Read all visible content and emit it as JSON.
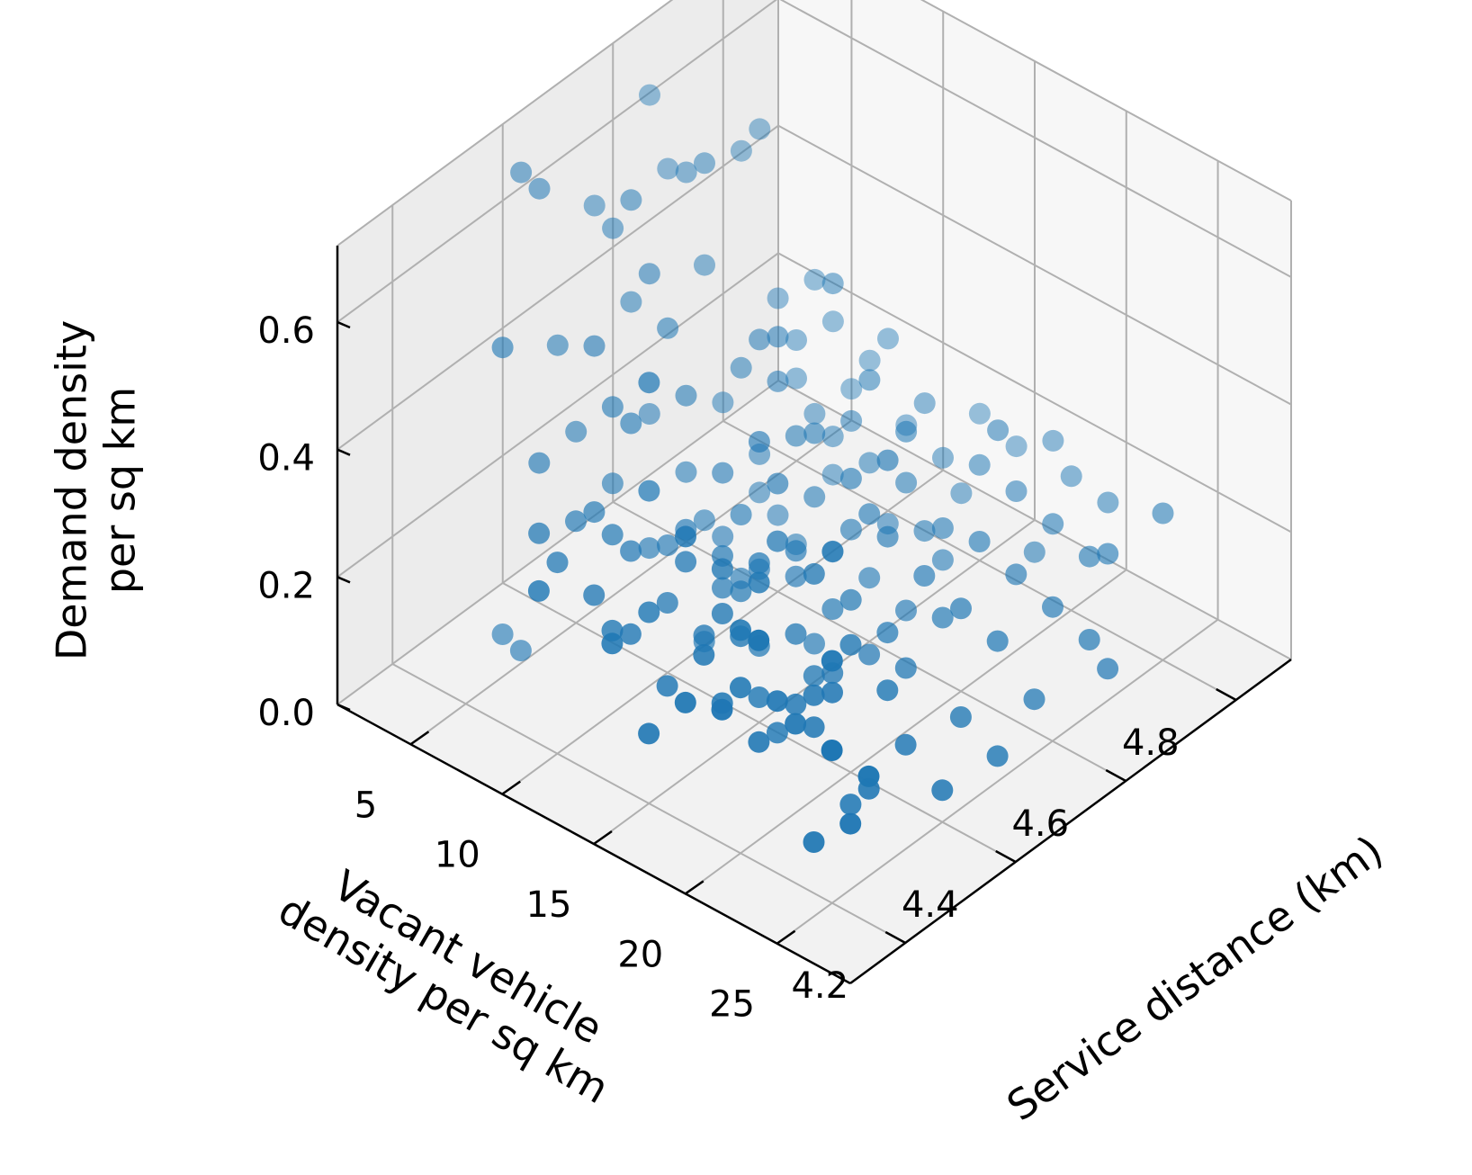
{
  "chart_data": {
    "type": "scatter",
    "projection": "3d",
    "title": "",
    "marker_color": "#1f77b4",
    "pane_color": "#f2f2f2",
    "grid": true,
    "axes": {
      "x": {
        "label_lines": [
          "Service distance (km)"
        ],
        "range": [
          4.1,
          4.9
        ],
        "ticks": [
          4.2,
          4.4,
          4.6,
          4.8
        ],
        "tick_labels": [
          "4.2",
          "4.4",
          "4.6",
          "4.8"
        ]
      },
      "y": {
        "label_lines": [
          "Vacant vehicle",
          "density per sq km"
        ],
        "range": [
          1,
          29
        ],
        "ticks": [
          5,
          10,
          15,
          20,
          25
        ],
        "tick_labels": [
          "5",
          "10",
          "15",
          "20",
          "25"
        ]
      },
      "z": {
        "label_lines": [
          "Demand density",
          "per sq km"
        ],
        "range": [
          0,
          0.72
        ],
        "ticks": [
          0.0,
          0.2,
          0.4,
          0.6
        ],
        "tick_labels": [
          "0.0",
          "0.2",
          "0.4",
          "0.6"
        ]
      }
    },
    "points": [
      [
        4.3,
        5,
        0.02
      ],
      [
        4.3,
        4,
        0.03
      ],
      [
        4.4,
        13,
        0.18
      ],
      [
        4.5,
        14,
        0.19
      ],
      [
        4.5,
        16,
        0.22
      ],
      [
        4.6,
        14,
        0.24
      ],
      [
        4.8,
        16,
        0.22
      ],
      [
        4.9,
        22,
        0.12
      ],
      [
        4.7,
        16,
        0.13
      ],
      [
        4.5,
        10,
        0.25
      ],
      [
        4.6,
        10,
        0.33
      ],
      [
        4.7,
        12,
        0.3
      ],
      [
        4.7,
        14,
        0.25
      ],
      [
        4.6,
        11,
        0.26
      ],
      [
        4.6,
        12,
        0.28
      ],
      [
        4.6,
        16,
        0.3
      ],
      [
        4.5,
        12,
        0.33
      ],
      [
        4.4,
        8,
        0.36
      ],
      [
        4.4,
        7,
        0.37
      ],
      [
        4.5,
        8,
        0.34
      ],
      [
        4.6,
        9,
        0.38
      ],
      [
        4.6,
        10,
        0.4
      ],
      [
        4.7,
        10,
        0.42
      ],
      [
        4.5,
        4,
        0.54
      ],
      [
        4.5,
        3,
        0.56
      ],
      [
        4.6,
        4,
        0.57
      ],
      [
        4.7,
        5,
        0.55
      ],
      [
        4.5,
        5,
        0.6
      ],
      [
        4.6,
        6,
        0.61
      ],
      [
        4.7,
        6,
        0.6
      ],
      [
        4.4,
        2,
        0.66
      ],
      [
        4.4,
        3,
        0.65
      ],
      [
        4.6,
        3,
        0.67
      ],
      [
        4.6,
        5,
        0.58
      ],
      [
        4.5,
        6,
        0.5
      ],
      [
        4.3,
        4,
        0.48
      ],
      [
        4.5,
        7,
        0.43
      ],
      [
        4.4,
        6,
        0.45
      ],
      [
        4.3,
        12,
        0.55
      ],
      [
        4.2,
        17,
        0.45
      ],
      [
        4.1,
        24,
        0.46
      ],
      [
        4.2,
        25,
        0.38
      ],
      [
        4.1,
        28,
        0.35
      ],
      [
        4.2,
        20,
        0.35
      ],
      [
        4.3,
        18,
        0.33
      ],
      [
        4.3,
        16,
        0.32
      ],
      [
        4.4,
        16,
        0.3
      ],
      [
        4.4,
        18,
        0.28
      ],
      [
        4.3,
        14,
        0.3
      ],
      [
        4.2,
        14,
        0.25
      ],
      [
        4.3,
        11,
        0.27
      ],
      [
        4.4,
        11,
        0.24
      ],
      [
        4.4,
        13,
        0.23
      ],
      [
        4.2,
        22,
        0.27
      ],
      [
        4.2,
        23,
        0.25
      ],
      [
        4.3,
        22,
        0.22
      ],
      [
        4.3,
        21,
        0.2
      ],
      [
        4.4,
        22,
        0.16
      ],
      [
        4.2,
        27,
        0.23
      ],
      [
        4.3,
        20,
        0.17
      ],
      [
        4.3,
        18,
        0.15
      ],
      [
        4.5,
        20,
        0.1
      ],
      [
        4.4,
        15,
        0.12
      ],
      [
        4.4,
        18,
        0.12
      ],
      [
        4.5,
        14,
        0.15
      ],
      [
        4.5,
        12,
        0.13
      ],
      [
        4.6,
        13,
        0.11
      ],
      [
        4.6,
        15,
        0.1
      ],
      [
        4.7,
        15,
        0.11
      ],
      [
        4.8,
        11,
        0.15
      ],
      [
        4.8,
        13,
        0.13
      ],
      [
        4.7,
        10,
        0.12
      ],
      [
        4.6,
        9,
        0.14
      ],
      [
        4.5,
        9,
        0.16
      ],
      [
        4.4,
        9,
        0.18
      ],
      [
        4.4,
        10,
        0.2
      ],
      [
        4.5,
        11,
        0.2
      ],
      [
        4.6,
        12,
        0.18
      ],
      [
        4.7,
        12,
        0.17
      ],
      [
        4.7,
        9,
        0.2
      ],
      [
        4.8,
        9,
        0.22
      ],
      [
        4.8,
        7,
        0.25
      ],
      [
        4.7,
        8,
        0.24
      ],
      [
        4.6,
        7,
        0.25
      ],
      [
        4.5,
        6,
        0.28
      ],
      [
        4.4,
        5,
        0.3
      ],
      [
        4.3,
        6,
        0.33
      ],
      [
        4.3,
        9,
        0.3
      ],
      [
        4.3,
        10,
        0.28
      ],
      [
        4.2,
        10,
        0.3
      ],
      [
        4.2,
        12,
        0.28
      ],
      [
        4.2,
        9,
        0.33
      ],
      [
        4.1,
        12,
        0.35
      ],
      [
        4.1,
        16,
        0.33
      ],
      [
        4.2,
        15,
        0.3
      ],
      [
        4.2,
        18,
        0.28
      ],
      [
        4.1,
        20,
        0.3
      ],
      [
        4.1,
        22,
        0.32
      ],
      [
        4.2,
        20,
        0.26
      ],
      [
        4.2,
        13,
        0.24
      ],
      [
        4.3,
        13,
        0.22
      ],
      [
        4.3,
        15,
        0.2
      ],
      [
        4.4,
        14,
        0.19
      ],
      [
        4.4,
        17,
        0.17
      ],
      [
        4.5,
        17,
        0.16
      ],
      [
        4.5,
        19,
        0.14
      ],
      [
        4.6,
        18,
        0.15
      ],
      [
        4.6,
        20,
        0.13
      ],
      [
        4.7,
        18,
        0.14
      ],
      [
        4.7,
        20,
        0.12
      ],
      [
        4.8,
        19,
        0.12
      ],
      [
        4.8,
        17,
        0.14
      ],
      [
        4.8,
        21,
        0.1
      ],
      [
        4.8,
        22,
        0.12
      ],
      [
        4.7,
        22,
        0.1
      ],
      [
        4.6,
        22,
        0.11
      ],
      [
        4.5,
        23,
        0.07
      ],
      [
        4.4,
        23,
        0.09
      ],
      [
        4.3,
        24,
        0.1
      ],
      [
        4.2,
        26,
        0.14
      ],
      [
        4.4,
        25,
        0.05
      ],
      [
        4.5,
        25,
        0.04
      ],
      [
        4.3,
        23,
        0.06
      ],
      [
        4.2,
        24,
        0.08
      ],
      [
        4.6,
        24,
        0.05
      ],
      [
        4.7,
        25,
        0.05
      ],
      [
        4.7,
        24,
        0.08
      ],
      [
        4.6,
        17,
        0.08
      ],
      [
        4.5,
        15,
        0.06
      ],
      [
        4.4,
        12,
        0.08
      ],
      [
        4.5,
        11,
        0.1
      ],
      [
        4.6,
        11,
        0.09
      ],
      [
        4.7,
        13,
        0.09
      ],
      [
        4.8,
        14,
        0.09
      ],
      [
        4.9,
        14,
        0.1
      ],
      [
        4.9,
        12,
        0.12
      ],
      [
        4.9,
        17,
        0.1
      ],
      [
        4.9,
        19,
        0.09
      ],
      [
        4.3,
        16,
        0.25
      ],
      [
        4.4,
        20,
        0.2
      ],
      [
        4.3,
        12,
        0.38
      ],
      [
        4.6,
        8,
        0.32
      ],
      [
        4.7,
        8,
        0.3
      ],
      [
        4.8,
        10,
        0.27
      ],
      [
        4.5,
        13,
        0.28
      ],
      [
        4.4,
        15,
        0.25
      ],
      [
        4.6,
        19,
        0.1
      ],
      [
        4.7,
        16,
        0.08
      ],
      [
        4.8,
        18,
        0.06
      ],
      [
        4.5,
        18,
        0.09
      ],
      [
        4.3,
        19,
        0.11
      ],
      [
        4.2,
        21,
        0.19
      ],
      [
        4.2,
        19,
        0.22
      ],
      [
        4.1,
        18,
        0.22
      ],
      [
        4.3,
        17,
        0.23
      ],
      [
        4.6,
        15,
        0.2
      ],
      [
        4.7,
        11,
        0.22
      ],
      [
        4.8,
        12,
        0.2
      ],
      [
        4.6,
        6,
        0.45
      ],
      [
        4.5,
        5,
        0.44
      ],
      [
        4.4,
        4,
        0.42
      ],
      [
        4.6,
        14,
        0.16
      ],
      [
        4.5,
        16,
        0.13
      ],
      [
        4.4,
        19,
        0.14
      ],
      [
        4.3,
        21,
        0.15
      ],
      [
        4.2,
        16,
        0.2
      ],
      [
        4.5,
        8,
        0.22
      ],
      [
        4.6,
        9,
        0.2
      ],
      [
        4.7,
        10,
        0.18
      ],
      [
        4.8,
        8,
        0.16
      ],
      [
        4.7,
        7,
        0.35
      ],
      [
        4.8,
        6,
        0.3
      ],
      [
        4.5,
        10,
        0.15
      ],
      [
        4.6,
        10,
        0.12
      ],
      [
        4.4,
        7,
        0.25
      ],
      [
        4.3,
        8,
        0.27
      ],
      [
        4.7,
        14,
        0.17
      ],
      [
        4.8,
        15,
        0.15
      ],
      [
        4.9,
        16,
        0.14
      ],
      [
        4.6,
        16,
        0.18
      ]
    ]
  }
}
